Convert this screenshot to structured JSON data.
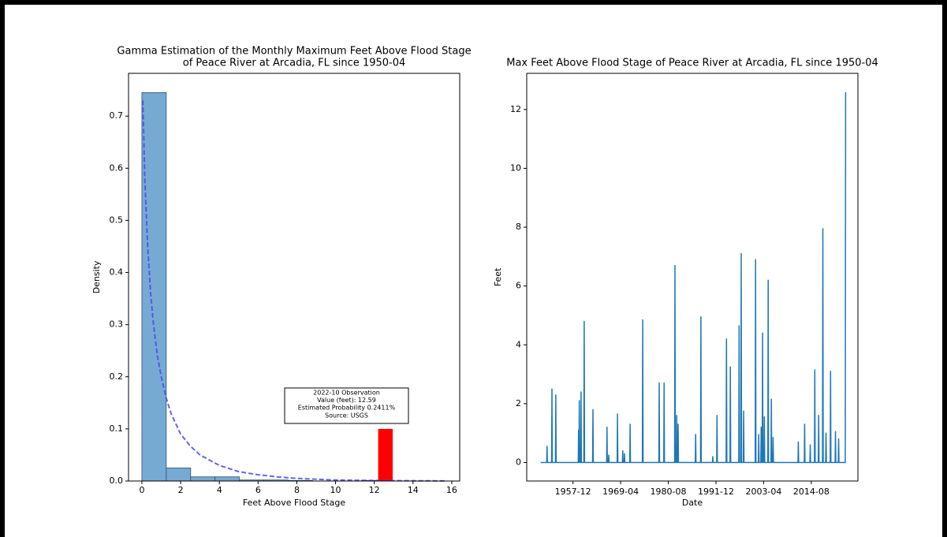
{
  "chart_data": [
    {
      "type": "histogram",
      "title": [
        "Gamma Estimation of the Monthly Maximum Feet Above Flood Stage",
        "of Peace River at Arcadia, FL since 1950-04"
      ],
      "xlabel": "Feet Above Flood Stage",
      "ylabel": "Density",
      "bins": [
        0,
        1.259,
        2.518,
        3.777,
        5.036,
        6.295,
        7.554,
        8.813,
        10.072,
        11.331,
        12.59
      ],
      "values": [
        0.745,
        0.025,
        0.008,
        0.008,
        0.002,
        0.002,
        0.001,
        0,
        0,
        0.001
      ],
      "color": "#77aad3",
      "edgecolor": "#2f4f6f",
      "highlight": {
        "bins": [
          12.2,
          12.95
        ],
        "value": 0.1,
        "color": "#ff0000"
      },
      "curve": {
        "x": [
          0.05,
          0.15,
          0.3,
          0.45,
          0.6,
          0.8,
          1,
          1.25,
          1.5,
          2,
          2.5,
          3,
          4,
          5,
          6,
          7,
          8,
          10,
          12,
          14,
          15.7
        ],
        "values": [
          0.73,
          0.58,
          0.45,
          0.36,
          0.3,
          0.24,
          0.2,
          0.16,
          0.13,
          0.09,
          0.067,
          0.05,
          0.03,
          0.018,
          0.012,
          0.008,
          0.005,
          0.002,
          0.001,
          0.0005,
          0.0002
        ],
        "color": "#4a4aee"
      },
      "annotation": [
        "2022-10 Observation",
        "Value (feet): 12.59",
        "Estimated Probability 0.2411%",
        "Source: USGS"
      ],
      "xlim": [
        -0.69,
        16.41
      ],
      "ylim": [
        0,
        0.782
      ],
      "xticks": [
        0,
        2,
        4,
        6,
        8,
        10,
        12,
        14,
        16
      ],
      "yticks": [
        {
          "value": 0,
          "label": "0.0"
        },
        0.1,
        0.2,
        0.3,
        0.4,
        0.5,
        0.6,
        0.7
      ]
    },
    {
      "type": "line",
      "title": [
        "Max Feet Above Flood Stage of Peace River at Arcadia, FL since 1950-04"
      ],
      "xlabel": "Date",
      "ylabel": "Feet",
      "color": "#1f77b4",
      "x": [
        "1950-04",
        "1951-09",
        "1951-10",
        "1951-11",
        "1952-11",
        "1952-12",
        "1953-01",
        "1953-10",
        "1953-11",
        "1953-12",
        "1959-03",
        "1959-04",
        "1959-05",
        "1959-06",
        "1959-07",
        "1959-10",
        "1959-11",
        "1959-12",
        "1960-07",
        "1960-08",
        "1960-09",
        "1962-08",
        "1962-09",
        "1962-10",
        "1965-12",
        "1966-01",
        "1966-02",
        "1966-05",
        "1966-06",
        "1966-07",
        "1968-06",
        "1968-07",
        "1968-08",
        "1969-09",
        "1969-10",
        "1969-11",
        "1970-02",
        "1970-03",
        "1970-04",
        "1971-06",
        "1971-07",
        "1971-08",
        "1974-06",
        "1974-07",
        "1974-08",
        "1978-05",
        "1978-06",
        "1978-07",
        "1979-07",
        "1979-08",
        "1979-09",
        "1982-02",
        "1982-03",
        "1982-04",
        "1982-07",
        "1982-08",
        "1982-09",
        "1982-11",
        "1982-12",
        "1983-01",
        "1987-01",
        "1987-02",
        "1987-03",
        "1988-04",
        "1988-05",
        "1988-06",
        "1991-02",
        "1991-03",
        "1991-04",
        "1992-02",
        "1992-03",
        "1992-04",
        "1994-05",
        "1994-06",
        "1994-07",
        "1995-04",
        "1995-05",
        "1995-06",
        "1997-05",
        "1997-06",
        "1997-07",
        "1997-11",
        "1997-12",
        "1998-01",
        "1998-06",
        "1998-07",
        "1998-08",
        "2001-04",
        "2001-05",
        "2001-06",
        "2002-01",
        "2002-02",
        "2002-03",
        "2002-08",
        "2002-09",
        "2002-10",
        "2002-12",
        "2003-01",
        "2003-02",
        "2003-05",
        "2003-06",
        "2003-07",
        "2004-04",
        "2004-05",
        "2004-06",
        "2005-01",
        "2005-02",
        "2005-03",
        "2005-06",
        "2005-07",
        "2005-08",
        "2011-06",
        "2011-07",
        "2011-08",
        "2012-12",
        "2013-01",
        "2013-02",
        "2014-04",
        "2014-05",
        "2014-06",
        "2015-05",
        "2015-06",
        "2015-07",
        "2016-04",
        "2016-05",
        "2016-06",
        "2017-04",
        "2017-05",
        "2017-06",
        "2018-01",
        "2018-02",
        "2018-03",
        "2019-02",
        "2019-03",
        "2019-04",
        "2020-04",
        "2020-05",
        "2020-06",
        "2021-01",
        "2021-02",
        "2021-03",
        "2022-09",
        "2022-10"
      ],
      "values": [
        0,
        0,
        0.55,
        0,
        0,
        2.5,
        0,
        0,
        2.3,
        0,
        0,
        1.1,
        0,
        2.1,
        0,
        0,
        2.4,
        0,
        0,
        4.8,
        0,
        0,
        1.8,
        0,
        0,
        1.2,
        0,
        0,
        0.25,
        0,
        0,
        1.65,
        0,
        0,
        0.4,
        0,
        0,
        0.3,
        0,
        0,
        1.3,
        0,
        0,
        4.85,
        0,
        0,
        2.7,
        0,
        0,
        2.7,
        0,
        0,
        6.7,
        0,
        0,
        1.6,
        0,
        0,
        1.3,
        0,
        0,
        0.95,
        0,
        0,
        4.95,
        0,
        0,
        0.2,
        0,
        0,
        1.6,
        0,
        0,
        4.2,
        0,
        0,
        3.25,
        0,
        0,
        4.65,
        0,
        0,
        7.1,
        0,
        0,
        1.75,
        0,
        0,
        6.9,
        0,
        0,
        0.95,
        0,
        0,
        1.2,
        0,
        0,
        4.4,
        0,
        0,
        1.55,
        0,
        0,
        6.2,
        0,
        0,
        2.15,
        0,
        0,
        0.85,
        0,
        0,
        0.7,
        0,
        0,
        1.3,
        0,
        0,
        0.6,
        0,
        0,
        3.15,
        0,
        0,
        1.6,
        0,
        0,
        7.95,
        0,
        0,
        1.0,
        0,
        0,
        3.1,
        0,
        0,
        1.05,
        0,
        0,
        0.8,
        0,
        0,
        12.59
      ],
      "xlim": [
        "1946-12",
        "2025-09"
      ],
      "ylim": [
        -0.63,
        13.23
      ],
      "xticks": [
        "1957-12",
        "1969-04",
        "1980-08",
        "1991-12",
        "2003-04",
        "2014-08"
      ],
      "yticks": [
        0,
        2,
        4,
        6,
        8,
        10,
        12
      ]
    }
  ]
}
